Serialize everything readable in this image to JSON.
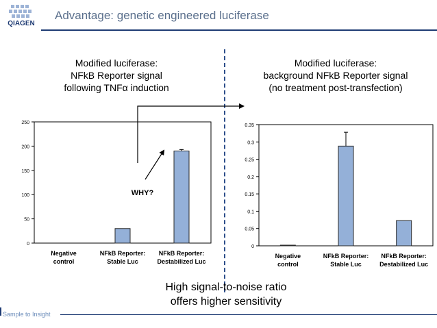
{
  "header": {
    "title": "Advantage: genetic engineered luciferase",
    "logo_text": "QIAGEN"
  },
  "left_panel": {
    "title_lines": [
      "Modified luciferase:",
      "NFkB Reporter signal",
      "following TNFα induction"
    ]
  },
  "right_panel": {
    "title_lines": [
      "Modified luciferase:",
      "background NFkB Reporter signal",
      "(no treatment post-transfection)"
    ]
  },
  "annotation": {
    "label": "WHY?"
  },
  "bottom_text": {
    "line1": "High signal-to-noise ratio",
    "line2": "offers higher sensitivity"
  },
  "footer": {
    "text": "Sample to Insight"
  },
  "colors": {
    "bar_fill": "#94b0d8",
    "bar_stroke": "#2a2a2a",
    "title": "#5a6f8c",
    "rule": "#1d3a73",
    "footer": "#6b8cba"
  },
  "chart_data": [
    {
      "type": "bar",
      "categories": [
        [
          "Negative",
          "control"
        ],
        [
          "NFkB Reporter:",
          "Stable Luc"
        ],
        [
          "NFkB Reporter:",
          "Destabilized Luc"
        ]
      ],
      "values": [
        0,
        30,
        190
      ],
      "errors": [
        0,
        0,
        3
      ],
      "yticks": [
        0,
        50,
        100,
        150,
        200,
        250
      ],
      "ylim": [
        0,
        250
      ],
      "grid": false
    },
    {
      "type": "bar",
      "categories": [
        [
          "Negative",
          "control"
        ],
        [
          "NFkB Reporter:",
          "Stable Luc"
        ],
        [
          "NFkB Reporter:",
          "Destabilized Luc"
        ]
      ],
      "values": [
        0.002,
        0.288,
        0.073
      ],
      "errors": [
        0,
        0.04,
        0
      ],
      "yticks": [
        "0",
        "0.05",
        "0.1",
        "0.15",
        "0.2",
        "0.25",
        "0.3",
        "0.35"
      ],
      "ylim": [
        0,
        0.35
      ],
      "grid": false
    }
  ]
}
